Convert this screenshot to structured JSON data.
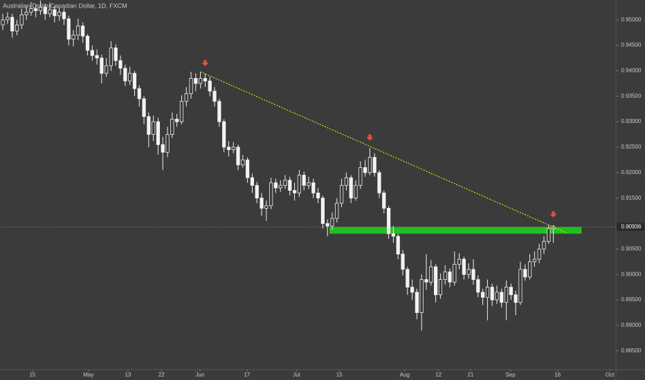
{
  "chart_data": {
    "type": "candlestick",
    "title": "Australian Dollar/Canadian Dollar, 1D, FXCM",
    "x": [
      0,
      1,
      2,
      3,
      4,
      5,
      6,
      7,
      8,
      9,
      10,
      11,
      12,
      13,
      14,
      15,
      16,
      17,
      18,
      19,
      20,
      21,
      22,
      23,
      24,
      25,
      26,
      27,
      28,
      29,
      30,
      31,
      32,
      33,
      34,
      35,
      36,
      37,
      38,
      39,
      40,
      41,
      42,
      43,
      44,
      45,
      46,
      47,
      48,
      49,
      50,
      51,
      52,
      53,
      54,
      55,
      56,
      57,
      58,
      59,
      60,
      61,
      62,
      63,
      64,
      65,
      66,
      67,
      68,
      69,
      70,
      71,
      72,
      73,
      74,
      75,
      76,
      77,
      78,
      79,
      80,
      81,
      82,
      83,
      84,
      85,
      86,
      87,
      88,
      89,
      90,
      91,
      92,
      93,
      94,
      95,
      96,
      97,
      98,
      99,
      100,
      101,
      102,
      103,
      104,
      105,
      106,
      107,
      108,
      109,
      110,
      111,
      112,
      113,
      114,
      115,
      116,
      117
    ],
    "open": [
      0.949,
      0.95,
      0.9505,
      0.9478,
      0.949,
      0.951,
      0.9515,
      0.9522,
      0.9518,
      0.9525,
      0.9512,
      0.952,
      0.9508,
      0.9515,
      0.9502,
      0.9462,
      0.947,
      0.9488,
      0.9468,
      0.944,
      0.943,
      0.9425,
      0.9395,
      0.941,
      0.9445,
      0.942,
      0.9405,
      0.938,
      0.9395,
      0.9365,
      0.9345,
      0.931,
      0.9275,
      0.93,
      0.9255,
      0.924,
      0.9275,
      0.9305,
      0.93,
      0.934,
      0.9355,
      0.9385,
      0.9375,
      0.9385,
      0.938,
      0.936,
      0.934,
      0.93,
      0.925,
      0.9245,
      0.925,
      0.9215,
      0.9225,
      0.919,
      0.9175,
      0.915,
      0.913,
      0.9135,
      0.918,
      0.917,
      0.9175,
      0.9185,
      0.9165,
      0.916,
      0.9195,
      0.9175,
      0.918,
      0.916,
      0.915,
      0.91,
      0.9095,
      0.911,
      0.914,
      0.9175,
      0.919,
      0.915,
      0.9175,
      0.921,
      0.92,
      0.923,
      0.92,
      0.916,
      0.913,
      0.908,
      0.9075,
      0.904,
      0.901,
      0.8975,
      0.8965,
      0.8925,
      0.899,
      0.8985,
      0.9015,
      0.896,
      0.899,
      0.9005,
      0.8985,
      0.902,
      0.903,
      0.9,
      0.901,
      0.899,
      0.8965,
      0.8955,
      0.8975,
      0.895,
      0.8965,
      0.8945,
      0.8975,
      0.896,
      0.8945,
      0.901,
      0.8995,
      0.9025,
      0.903,
      0.905,
      0.9065,
      0.909
    ],
    "high": [
      0.9512,
      0.9515,
      0.9512,
      0.95,
      0.9522,
      0.9528,
      0.9535,
      0.953,
      0.9538,
      0.9532,
      0.9534,
      0.9528,
      0.9526,
      0.9522,
      0.9508,
      0.948,
      0.9502,
      0.9495,
      0.9472,
      0.945,
      0.9442,
      0.9432,
      0.9425,
      0.9458,
      0.9452,
      0.943,
      0.9412,
      0.9408,
      0.94,
      0.9372,
      0.935,
      0.9318,
      0.9312,
      0.9308,
      0.927,
      0.929,
      0.9318,
      0.9315,
      0.9352,
      0.9368,
      0.9398,
      0.9395,
      0.9398,
      0.9394,
      0.9388,
      0.9368,
      0.9345,
      0.9305,
      0.9262,
      0.926,
      0.9255,
      0.9235,
      0.923,
      0.9198,
      0.9182,
      0.916,
      0.9145,
      0.919,
      0.9188,
      0.9185,
      0.9195,
      0.9192,
      0.918,
      0.9205,
      0.9202,
      0.9192,
      0.9188,
      0.917,
      0.9155,
      0.9108,
      0.9122,
      0.915,
      0.9188,
      0.92,
      0.9195,
      0.9185,
      0.9222,
      0.9225,
      0.9248,
      0.9238,
      0.9205,
      0.9165,
      0.9135,
      0.9095,
      0.908,
      0.9048,
      0.9015,
      0.899,
      0.8972,
      0.9,
      0.904,
      0.9028,
      0.902,
      0.9002,
      0.9018,
      0.9012,
      0.9045,
      0.9042,
      0.9035,
      0.9022,
      0.903,
      0.8998,
      0.8972,
      0.899,
      0.8982,
      0.8978,
      0.8972,
      0.8988,
      0.8982,
      0.8968,
      0.9025,
      0.902,
      0.904,
      0.9045,
      0.906,
      0.9075,
      0.9098,
      0.9097
    ],
    "low": [
      0.948,
      0.9492,
      0.9465,
      0.947,
      0.9482,
      0.95,
      0.9508,
      0.9505,
      0.951,
      0.95,
      0.9505,
      0.9495,
      0.9498,
      0.949,
      0.945,
      0.9448,
      0.946,
      0.9455,
      0.943,
      0.942,
      0.9412,
      0.9375,
      0.9388,
      0.94,
      0.941,
      0.9392,
      0.937,
      0.9372,
      0.935,
      0.933,
      0.9295,
      0.925,
      0.9262,
      0.9235,
      0.9205,
      0.923,
      0.9268,
      0.929,
      0.9295,
      0.933,
      0.9345,
      0.936,
      0.9365,
      0.9368,
      0.935,
      0.933,
      0.929,
      0.924,
      0.9232,
      0.9238,
      0.9205,
      0.921,
      0.918,
      0.916,
      0.914,
      0.9115,
      0.9105,
      0.9128,
      0.916,
      0.9162,
      0.9168,
      0.9155,
      0.9145,
      0.9152,
      0.9165,
      0.9168,
      0.915,
      0.914,
      0.909,
      0.9075,
      0.9088,
      0.9102,
      0.9132,
      0.9165,
      0.914,
      0.9145,
      0.9168,
      0.9192,
      0.9195,
      0.9192,
      0.915,
      0.912,
      0.907,
      0.9062,
      0.903,
      0.8998,
      0.896,
      0.895,
      0.8912,
      0.889,
      0.897,
      0.8978,
      0.8945,
      0.8952,
      0.898,
      0.8975,
      0.8978,
      0.901,
      0.899,
      0.8992,
      0.898,
      0.8955,
      0.894,
      0.891,
      0.8938,
      0.8942,
      0.8935,
      0.891,
      0.895,
      0.892,
      0.894,
      0.8988,
      0.899,
      0.9015,
      0.9022,
      0.904,
      0.906,
      0.9062
    ],
    "close": [
      0.95,
      0.9505,
      0.9478,
      0.949,
      0.951,
      0.9515,
      0.9522,
      0.9518,
      0.9525,
      0.9512,
      0.952,
      0.9508,
      0.9515,
      0.9502,
      0.9462,
      0.947,
      0.9488,
      0.9468,
      0.944,
      0.943,
      0.9425,
      0.9395,
      0.941,
      0.9445,
      0.942,
      0.9405,
      0.938,
      0.9395,
      0.9365,
      0.9345,
      0.931,
      0.9275,
      0.93,
      0.9255,
      0.924,
      0.9275,
      0.9305,
      0.93,
      0.934,
      0.9355,
      0.9385,
      0.9375,
      0.9385,
      0.938,
      0.936,
      0.934,
      0.93,
      0.925,
      0.9245,
      0.925,
      0.9215,
      0.9225,
      0.919,
      0.9175,
      0.915,
      0.913,
      0.9135,
      0.918,
      0.917,
      0.9175,
      0.9185,
      0.9165,
      0.916,
      0.9195,
      0.9175,
      0.918,
      0.916,
      0.915,
      0.91,
      0.9095,
      0.911,
      0.914,
      0.9175,
      0.919,
      0.915,
      0.9175,
      0.921,
      0.92,
      0.923,
      0.92,
      0.916,
      0.913,
      0.908,
      0.9075,
      0.904,
      0.901,
      0.8975,
      0.8965,
      0.8925,
      0.899,
      0.8985,
      0.9015,
      0.896,
      0.899,
      0.9005,
      0.8985,
      0.902,
      0.903,
      0.9,
      0.901,
      0.899,
      0.8965,
      0.8955,
      0.8975,
      0.895,
      0.8965,
      0.8945,
      0.8975,
      0.896,
      0.8945,
      0.901,
      0.8995,
      0.9025,
      0.903,
      0.905,
      0.9065,
      0.909,
      0.9094
    ],
    "xlim": [
      -0.6,
      130.3
    ],
    "xticks": [
      {
        "value": 6.3,
        "label": "15"
      },
      {
        "value": 18.2,
        "label": "May"
      },
      {
        "value": 26.6,
        "label": "13"
      },
      {
        "value": 33.7,
        "label": "22"
      },
      {
        "value": 41.9,
        "label": "Jun"
      },
      {
        "value": 51.9,
        "label": "17"
      },
      {
        "value": 62.4,
        "label": "Jul"
      },
      {
        "value": 71.5,
        "label": "15"
      },
      {
        "value": 85.4,
        "label": "Aug"
      },
      {
        "value": 92.6,
        "label": "12"
      },
      {
        "value": 99.4,
        "label": "21"
      },
      {
        "value": 107.9,
        "label": "Sep"
      },
      {
        "value": 117.9,
        "label": "16"
      },
      {
        "value": 129,
        "label": "Oct"
      }
    ],
    "ylim": [
      0.8813,
      0.9539
    ],
    "yticks": [
      {
        "value": 0.95,
        "label": "0.95000"
      },
      {
        "value": 0.945,
        "label": "0.94500"
      },
      {
        "value": 0.94,
        "label": "0.94000"
      },
      {
        "value": 0.935,
        "label": "0.93500"
      },
      {
        "value": 0.93,
        "label": "0.93000"
      },
      {
        "value": 0.925,
        "label": "0.92500"
      },
      {
        "value": 0.92,
        "label": "0.92000"
      },
      {
        "value": 0.915,
        "label": "0.91500"
      },
      {
        "value": 0.905,
        "label": "0.90500"
      },
      {
        "value": 0.9,
        "label": "0.90000"
      },
      {
        "value": 0.895,
        "label": "0.89500"
      },
      {
        "value": 0.89,
        "label": "0.89000"
      },
      {
        "value": 0.885,
        "label": "0.88500"
      }
    ],
    "last_price": 0.90936,
    "trendline": {
      "x": [
        42,
        119.7
      ],
      "y": [
        0.9398,
        0.9082
      ],
      "color": "#e6e600"
    },
    "zone": {
      "x": [
        69.4,
        123
      ],
      "y": [
        0.908,
        0.9093
      ],
      "color": "#1fc01f"
    },
    "markers": {
      "x": [
        43,
        78,
        117
      ],
      "color": "#e8503c"
    },
    "up_color": "#3b3b3b",
    "down_color": "#f2f2f2"
  }
}
